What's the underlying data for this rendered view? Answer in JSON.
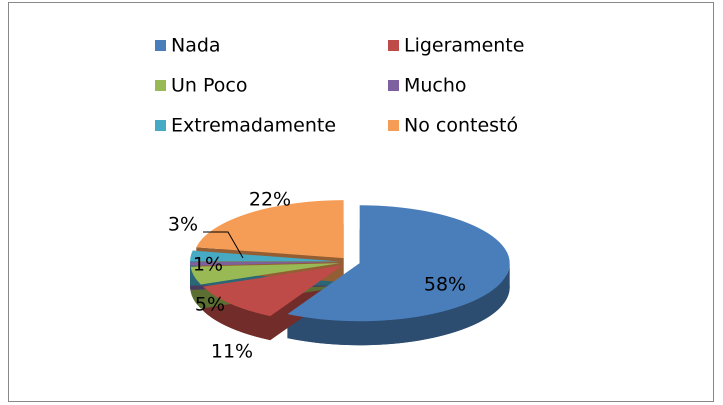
{
  "chart_data": {
    "type": "pie3d",
    "categories": [
      "Nada",
      "Ligeramente",
      "Un Poco",
      "Mucho",
      "Extremadamente",
      "No contestó"
    ],
    "values": [
      58,
      11,
      5,
      1,
      3,
      22
    ],
    "value_labels": [
      "58%",
      "11%",
      "5%",
      "1%",
      "3%",
      "22%"
    ],
    "colors": [
      "#4a7ebb",
      "#be4b48",
      "#98b954",
      "#7d60a0",
      "#46aac5",
      "#f59d56"
    ],
    "legend": "top"
  }
}
